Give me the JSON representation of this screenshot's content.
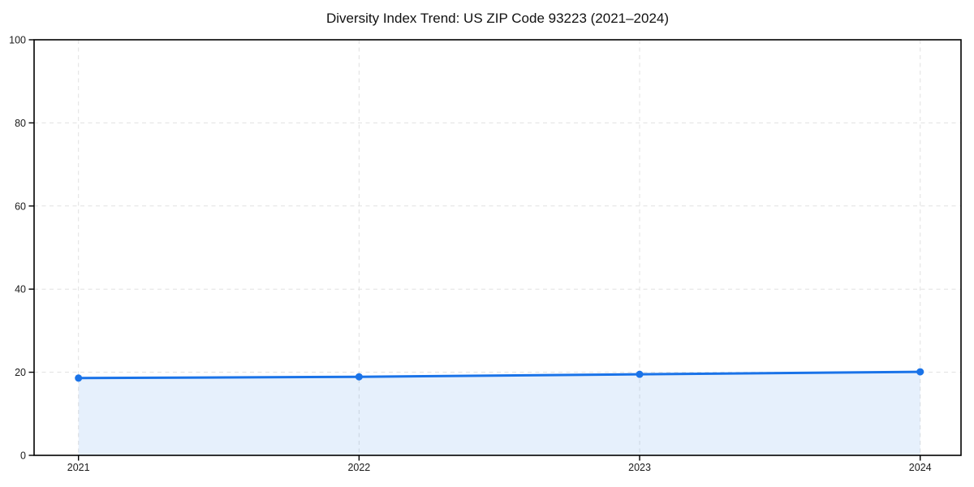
{
  "chart_data": {
    "type": "line",
    "title": "Diversity Index Trend: US ZIP Code 93223 (2021–2024)",
    "categories": [
      "2021",
      "2022",
      "2023",
      "2024"
    ],
    "series": [
      {
        "name": "Diversity Index",
        "values": [
          18.6,
          18.9,
          19.5,
          20.1
        ]
      }
    ],
    "xlabel": "",
    "ylabel": "",
    "ylim": [
      0,
      100
    ],
    "yticks": [
      0,
      20,
      40,
      60,
      80,
      100
    ],
    "grid": "dashed-both-axes",
    "legend_position": "none",
    "marker_style": "filled-circle",
    "area_fill_to_zero": true,
    "colors": {
      "line": "#1a73e8",
      "marker": "#1a73e8",
      "area_fill": "rgba(26,115,232,0.11)",
      "gridline": "#e1e1e1",
      "axis": "#000000",
      "text": "#1a1a1a"
    }
  }
}
